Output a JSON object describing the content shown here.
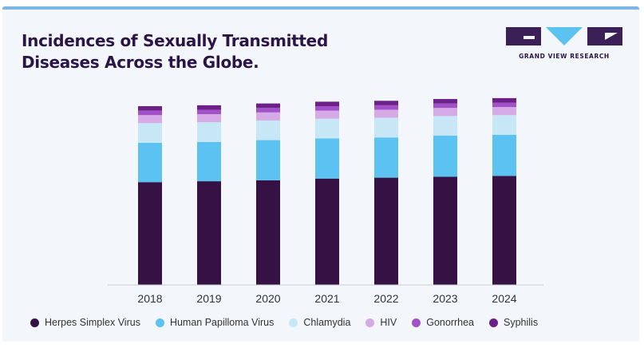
{
  "header": {
    "title_line1": "Incidences of Sexually Transmitted",
    "title_line2": "Diseases Across the Globe."
  },
  "brand": {
    "name": "GRAND VIEW RESEARCH",
    "logo_color": "#3b1f57",
    "accent_color": "#5bc2f2"
  },
  "chart_data": {
    "type": "bar",
    "stacked": true,
    "categories": [
      "2018",
      "2019",
      "2020",
      "2021",
      "2022",
      "2023",
      "2024"
    ],
    "ylim": [
      0,
      100
    ],
    "grid": false,
    "legend_position": "bottom",
    "y_axis_shown": false,
    "series": [
      {
        "name": "Herpes Simplex Virus",
        "color": "#361143",
        "values": [
          57.5,
          58,
          58.5,
          59.5,
          60,
          60.5,
          61
        ]
      },
      {
        "name": "Human Papilloma Virus",
        "color": "#5bc2f2",
        "values": [
          22,
          22,
          22.5,
          22.5,
          22.5,
          23,
          23
        ]
      },
      {
        "name": "Chlamydia",
        "color": "#c7e7f7",
        "values": [
          11,
          11,
          11,
          11,
          11,
          11,
          11
        ]
      },
      {
        "name": "HIV",
        "color": "#d6aae7",
        "values": [
          4.5,
          4.5,
          4.5,
          4.5,
          4.5,
          4.5,
          4.5
        ]
      },
      {
        "name": "Gonorrhea",
        "color": "#a251c9",
        "values": [
          2.5,
          2.5,
          2.5,
          2.5,
          2.5,
          2.5,
          2.5
        ]
      },
      {
        "name": "Syphilis",
        "color": "#6b2189",
        "values": [
          2.5,
          2.5,
          2.5,
          2.5,
          2.5,
          2.5,
          2.5
        ]
      }
    ]
  }
}
